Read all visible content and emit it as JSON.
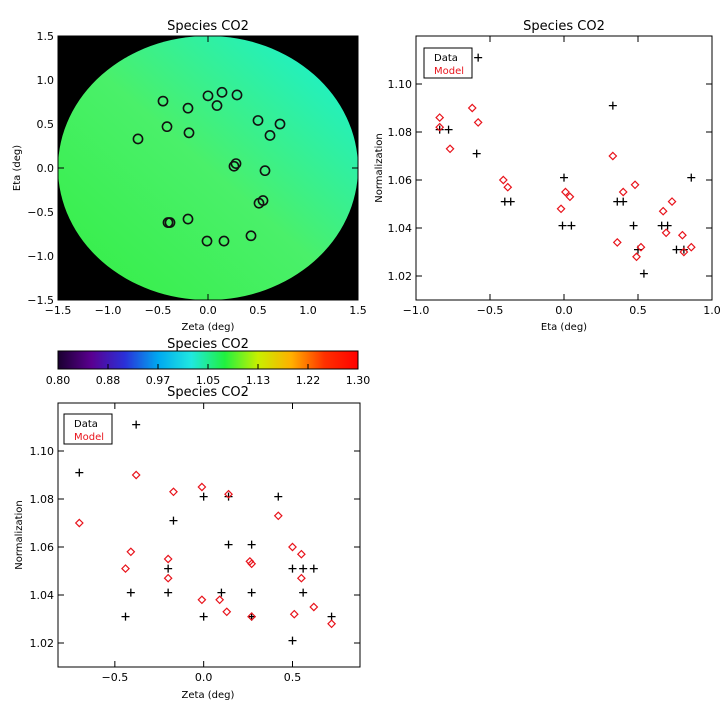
{
  "chart_data": [
    {
      "type": "heatmap",
      "title": "Species CO2",
      "xlabel": "Zeta (deg)",
      "ylabel": "Eta (deg)",
      "xlim": [
        -1.5,
        1.5
      ],
      "ylim": [
        -1.5,
        1.5
      ],
      "xticks": [
        -1.5,
        -1.0,
        -0.5,
        0.0,
        0.5,
        1.0,
        1.5
      ],
      "yticks": [
        -1.5,
        -1.0,
        -0.5,
        0.0,
        0.5,
        1.0,
        1.5
      ],
      "xtick_labels": [
        "−1.5",
        "−1.0",
        "−0.5",
        "0.0",
        "0.5",
        "1.0",
        "1.5"
      ],
      "ytick_labels": [
        "−1.5",
        "−1.0",
        "−0.5",
        "0.0",
        "0.5",
        "1.0",
        "1.5"
      ],
      "background_color": "#000000",
      "field_colors": {
        "bottom_left": "#33ee44",
        "center": "#4af06a",
        "top_right": "#14f0dd"
      },
      "field_value_range": [
        1.05,
        1.1
      ],
      "disk_radius": 1.5,
      "circle_markers": {
        "x": [
          -0.7,
          -0.45,
          -0.41,
          -0.2,
          -0.19,
          -0.4,
          0.0,
          0.09,
          0.14,
          0.29,
          0.5,
          0.62,
          0.72,
          0.26,
          0.28,
          0.57,
          0.51,
          0.55,
          0.43,
          0.16,
          -0.01,
          -0.2,
          -0.38
        ],
        "y": [
          0.33,
          0.76,
          0.47,
          0.68,
          0.4,
          -0.62,
          0.82,
          0.71,
          0.86,
          0.83,
          0.54,
          0.37,
          0.5,
          0.02,
          0.05,
          -0.03,
          -0.4,
          -0.37,
          -0.77,
          -0.83,
          -0.83,
          -0.58,
          -0.62
        ]
      }
    },
    {
      "type": "scatter",
      "title": "Species CO2",
      "xlabel": "Eta (deg)",
      "ylabel": "Normalization",
      "xlim": [
        -1.0,
        1.0
      ],
      "ylim": [
        1.01,
        1.12
      ],
      "xticks": [
        -1.0,
        -0.5,
        0.0,
        0.5,
        1.0
      ],
      "yticks": [
        1.02,
        1.04,
        1.06,
        1.08,
        1.1
      ],
      "xtick_labels": [
        "−1.0",
        "−0.5",
        "0.0",
        "0.5",
        "1.0"
      ],
      "ytick_labels": [
        "1.02",
        "1.04",
        "1.06",
        "1.08",
        "1.10"
      ],
      "legend": {
        "placement": "top-left",
        "entries": [
          "Data",
          "Model"
        ]
      },
      "series": [
        {
          "name": "Data",
          "marker": "plus",
          "color": "#000000",
          "x": [
            -0.58,
            -0.84,
            -0.78,
            -0.59,
            -0.4,
            -0.36,
            0.0,
            0.05,
            -0.01,
            0.33,
            0.36,
            0.4,
            0.47,
            0.5,
            0.54,
            0.66,
            0.7,
            0.76,
            0.81,
            0.86
          ],
          "y": [
            1.111,
            1.081,
            1.081,
            1.071,
            1.051,
            1.051,
            1.061,
            1.041,
            1.041,
            1.091,
            1.051,
            1.051,
            1.041,
            1.031,
            1.021,
            1.041,
            1.041,
            1.031,
            1.031,
            1.061
          ]
        },
        {
          "name": "Model",
          "marker": "diamond",
          "color": "#e8141c",
          "x": [
            -0.84,
            -0.84,
            -0.77,
            -0.62,
            -0.58,
            -0.41,
            -0.38,
            -0.02,
            0.01,
            0.04,
            0.33,
            0.36,
            0.4,
            0.48,
            0.49,
            0.52,
            0.67,
            0.69,
            0.73,
            0.8,
            0.81,
            0.86
          ],
          "y": [
            1.082,
            1.086,
            1.073,
            1.09,
            1.084,
            1.06,
            1.057,
            1.048,
            1.055,
            1.053,
            1.07,
            1.034,
            1.055,
            1.058,
            1.028,
            1.032,
            1.047,
            1.038,
            1.051,
            1.037,
            1.03,
            1.032
          ]
        }
      ]
    },
    {
      "type": "colorbar",
      "title": "Species CO2",
      "vmin": 0.8,
      "vmax": 1.3,
      "tick_labels": [
        "0.80",
        "0.88",
        "0.97",
        "1.05",
        "1.13",
        "1.22",
        "1.30"
      ],
      "stops": [
        "#1a0030",
        "#5a0090",
        "#2a30d8",
        "#00a8f0",
        "#20e8e0",
        "#20f040",
        "#c8f000",
        "#ffb000",
        "#ff3000",
        "#ff0000"
      ]
    },
    {
      "type": "scatter",
      "title": "Species CO2",
      "xlabel": "Zeta (deg)",
      "ylabel": "Normalization",
      "xlim": [
        -0.82,
        0.88
      ],
      "ylim": [
        1.01,
        1.12
      ],
      "xticks": [
        -0.5,
        0.0,
        0.5
      ],
      "yticks": [
        1.02,
        1.04,
        1.06,
        1.08,
        1.1
      ],
      "xtick_labels": [
        "−0.5",
        "0.0",
        "0.5"
      ],
      "ytick_labels": [
        "1.02",
        "1.04",
        "1.06",
        "1.08",
        "1.10"
      ],
      "legend": {
        "placement": "top-left",
        "entries": [
          "Data",
          "Model"
        ]
      },
      "series": [
        {
          "name": "Data",
          "marker": "plus",
          "color": "#000000",
          "x": [
            -0.7,
            -0.38,
            -0.41,
            -0.44,
            -0.17,
            -0.2,
            -0.2,
            0.0,
            0.0,
            0.1,
            0.14,
            0.14,
            0.27,
            0.27,
            0.27,
            0.42,
            0.5,
            0.5,
            0.56,
            0.56,
            0.62,
            0.72
          ],
          "y": [
            1.091,
            1.111,
            1.041,
            1.031,
            1.071,
            1.051,
            1.041,
            1.081,
            1.031,
            1.041,
            1.081,
            1.061,
            1.061,
            1.041,
            1.031,
            1.081,
            1.051,
            1.021,
            1.051,
            1.041,
            1.051,
            1.031
          ]
        },
        {
          "name": "Model",
          "marker": "diamond",
          "color": "#e8141c",
          "x": [
            -0.7,
            -0.38,
            -0.41,
            -0.44,
            -0.17,
            -0.2,
            -0.2,
            -0.01,
            -0.01,
            0.09,
            0.13,
            0.14,
            0.26,
            0.27,
            0.27,
            0.42,
            0.5,
            0.51,
            0.55,
            0.55,
            0.62,
            0.72
          ],
          "y": [
            1.07,
            1.09,
            1.058,
            1.051,
            1.083,
            1.055,
            1.047,
            1.085,
            1.038,
            1.038,
            1.033,
            1.082,
            1.054,
            1.053,
            1.031,
            1.073,
            1.06,
            1.032,
            1.057,
            1.047,
            1.035,
            1.028
          ]
        }
      ]
    }
  ]
}
